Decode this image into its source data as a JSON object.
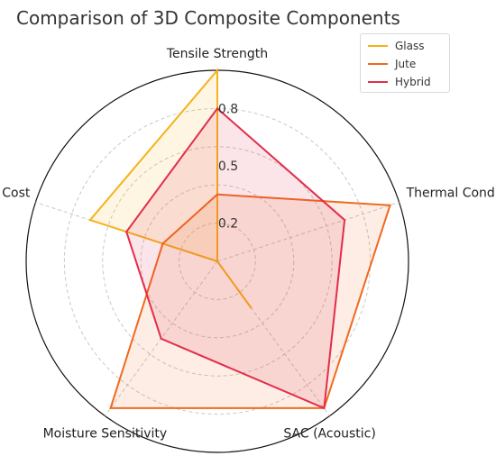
{
  "chart_data": {
    "type": "radar",
    "title": "Comparison of 3D Composite Components",
    "axes": [
      "Tensile Strength",
      "Thermal Conductivity",
      "SAC (Acoustic)",
      "Moisture Sensitivity",
      "Cost"
    ],
    "radial_ticks": [
      "0.2",
      "0.5",
      "0.8"
    ],
    "rlim": [
      0,
      1
    ],
    "grid": true,
    "legend_position": "top-right",
    "series": [
      {
        "name": "Glass",
        "color": "#f5b21a",
        "values": [
          1.0,
          0.0,
          0.3,
          0.0,
          0.7
        ]
      },
      {
        "name": "Jute",
        "color": "#ef6a1f",
        "values": [
          0.35,
          0.95,
          0.95,
          0.95,
          0.3
        ]
      },
      {
        "name": "Hybrid",
        "color": "#e22d4a",
        "values": [
          0.8,
          0.7,
          0.95,
          0.5,
          0.5
        ]
      }
    ]
  }
}
